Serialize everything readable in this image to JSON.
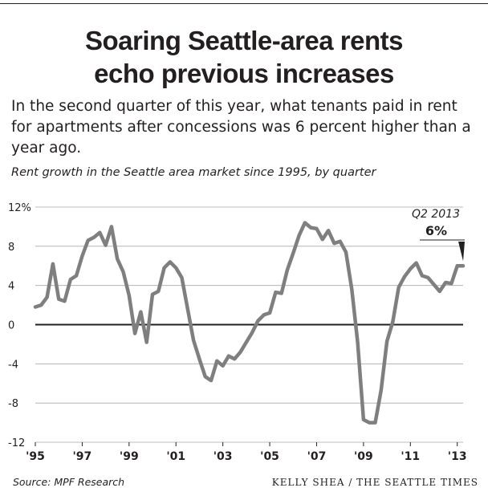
{
  "header": {
    "title_line1": "Soaring Seattle-area rents",
    "title_line2": "echo previous increases",
    "subtitle": "In the second quarter of this year, what tenants paid in rent for apartments after concessions was 6 percent higher than a year ago."
  },
  "footer": {
    "source": "Source: MPF Research",
    "credit": "KELLY SHEA / THE SEATTLE TIMES"
  },
  "chart_data": {
    "type": "line",
    "title": "Rent growth in the Seattle area market since 1995, by quarter",
    "xlabel": "",
    "ylabel": "",
    "x_tick_labels": [
      "'95",
      "'97",
      "'99",
      "'01",
      "'03",
      "'05",
      "'07",
      "'09",
      "'11",
      "'13"
    ],
    "x_ticks": [
      1995,
      1997,
      1999,
      2001,
      2003,
      2005,
      2007,
      2009,
      2011,
      2013
    ],
    "y_tick_labels": [
      "12%",
      "8",
      "4",
      "0",
      "-4",
      "-8",
      "-12"
    ],
    "y_ticks": [
      12,
      8,
      4,
      0,
      -4,
      -8,
      -12
    ],
    "xlim": [
      1995,
      2013.25
    ],
    "ylim": [
      -12,
      12
    ],
    "grid": "horizontal",
    "zero_line": true,
    "line_color": "#7f7f7f",
    "series": [
      {
        "x": [
          1995.0,
          1995.25,
          1995.5,
          1995.75,
          1996.0,
          1996.25,
          1996.5,
          1996.75,
          1997.0,
          1997.25,
          1997.5,
          1997.75,
          1998.0,
          1998.25,
          1998.5,
          1998.75,
          1999.0,
          1999.25,
          1999.5,
          1999.75,
          2000.0,
          2000.25,
          2000.5,
          2000.75,
          2001.0,
          2001.25,
          2001.5,
          2001.75,
          2002.0,
          2002.25,
          2002.5,
          2002.75,
          2003.0,
          2003.25,
          2003.5,
          2003.75,
          2004.0,
          2004.25,
          2004.5,
          2004.75,
          2005.0,
          2005.25,
          2005.5,
          2005.75,
          2006.0,
          2006.25,
          2006.5,
          2006.75,
          2007.0,
          2007.25,
          2007.5,
          2007.75,
          2008.0,
          2008.25,
          2008.5,
          2008.75,
          2009.0,
          2009.25,
          2009.5,
          2009.75,
          2010.0,
          2010.25,
          2010.5,
          2010.75,
          2011.0,
          2011.25,
          2011.5,
          2011.75,
          2012.0,
          2012.25,
          2012.5,
          2012.75,
          2013.0,
          2013.25
        ],
        "values": [
          1.8,
          2.0,
          2.8,
          6.2,
          2.6,
          2.4,
          4.6,
          5.0,
          7.0,
          8.6,
          8.9,
          9.4,
          8.1,
          10.0,
          6.7,
          5.4,
          3.0,
          -0.9,
          1.3,
          -1.8,
          3.1,
          3.4,
          5.8,
          6.4,
          5.8,
          4.8,
          1.6,
          -1.6,
          -3.5,
          -5.3,
          -5.7,
          -3.7,
          -4.2,
          -3.2,
          -3.5,
          -2.8,
          -1.8,
          -0.8,
          0.4,
          1.0,
          1.2,
          3.3,
          3.2,
          5.6,
          7.3,
          9.1,
          10.4,
          9.9,
          9.8,
          8.7,
          9.6,
          8.3,
          8.5,
          7.4,
          3.6,
          -1.8,
          -9.7,
          -10.0,
          -10.0,
          -6.7,
          -1.7,
          0.3,
          3.8,
          4.9,
          5.7,
          6.3,
          5.0,
          4.8,
          4.1,
          3.4,
          4.3,
          4.2,
          6.0,
          6.0
        ]
      }
    ],
    "annotation": {
      "label": "Q2 2013",
      "value_label": "6%",
      "x": 2013.25,
      "y": 6.0
    }
  }
}
